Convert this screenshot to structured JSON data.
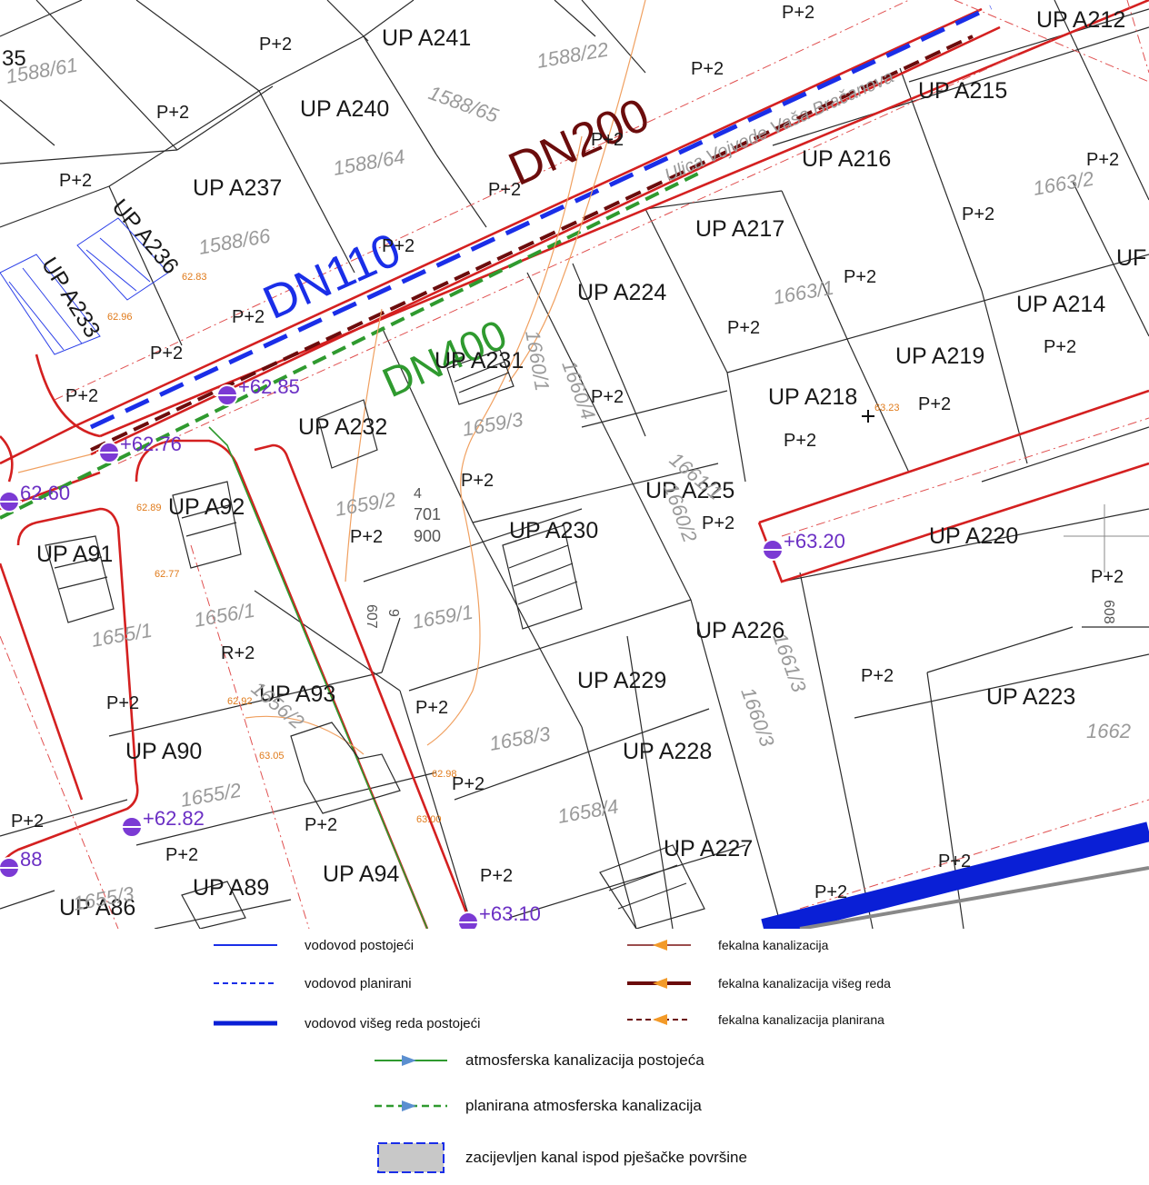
{
  "map": {
    "pipe_labels": {
      "dn110": "DN110",
      "dn200": "DN200",
      "dn400": "DN400"
    },
    "street_name": "Ulica Vojvode Vaša Bračanova",
    "up_labels": [
      "UP A241",
      "UP A240",
      "UP A237",
      "UP A236",
      "UP A233",
      "UP A212",
      "UP A215",
      "UP A216",
      "UP A217",
      "UP A224",
      "UP A214",
      "UP A219",
      "UP A218",
      "UP A231",
      "UP A232",
      "UP A225",
      "UP A230",
      "UP A92",
      "UP A91",
      "UP A220",
      "UP A226",
      "UP A229",
      "UP A93",
      "UP A90",
      "UP A228",
      "UP A223",
      "UP A227",
      "UP A94",
      "UP A89",
      "UP A86"
    ],
    "p_label": "P+2",
    "p_label_alt": "R+2",
    "parcel_labels": [
      "1588/61",
      "1588/22",
      "1588/65",
      "1588/64",
      "1588/66",
      "1663/2",
      "1663/1",
      "1660/1",
      "1660/4",
      "1659/3",
      "1659/2",
      "1661/1",
      "1660/2",
      "1656/1",
      "1655/1",
      "1659/1",
      "1656/2",
      "1661/3",
      "1660/3",
      "1658/3",
      "1658/4",
      "1655/2",
      "1662",
      "1655/3"
    ],
    "elevations": [
      "+62.85",
      "+62.76",
      "62.60",
      "+63.20",
      "+62.82",
      "+63.10",
      "88"
    ],
    "point_elevations": [
      "62.83",
      "62.96",
      "63.23",
      "62.77",
      "62.89",
      "62.92",
      "63.05",
      "62.98",
      "63.00"
    ],
    "misc_texts": {
      "t35": "35",
      "t4": "4",
      "t701": "701",
      "t900": "900",
      "t9": "9",
      "t607": "607",
      "t608": "608",
      "tup": "UF"
    }
  },
  "legend": {
    "items": [
      {
        "name": "vodovod-postojeci",
        "label": "vodovod postojeći",
        "color": "#1a2ee8"
      },
      {
        "name": "vodovod-planirani",
        "label": "vodovod planirani",
        "color": "#1a2ee8"
      },
      {
        "name": "vodovod-viseg-reda",
        "label": "vodovod višeg reda postojeći",
        "color": "#0a1fd6"
      },
      {
        "name": "fekalna-kanalizacija",
        "label": "fekalna kanalizacija",
        "color": "#7a1212"
      },
      {
        "name": "fekalna-viseg-reda",
        "label": "fekalna kanalizacija višeg reda",
        "color": "#6b0c0c"
      },
      {
        "name": "fekalna-planirana",
        "label": "fekalna kanalizacija planirana",
        "color": "#6b0c0c"
      },
      {
        "name": "atmosferska-postojeca",
        "label": "atmosferska kanalizacija postojeća",
        "color": "#2f9a2f"
      },
      {
        "name": "atmosferska-planirana",
        "label": "planirana atmosferska kanalizacija",
        "color": "#2f9a2f"
      },
      {
        "name": "zacijevljen-kanal",
        "label": "zacijevljen kanal ispod pješačke površine",
        "color": "#1a2ee8"
      }
    ]
  }
}
